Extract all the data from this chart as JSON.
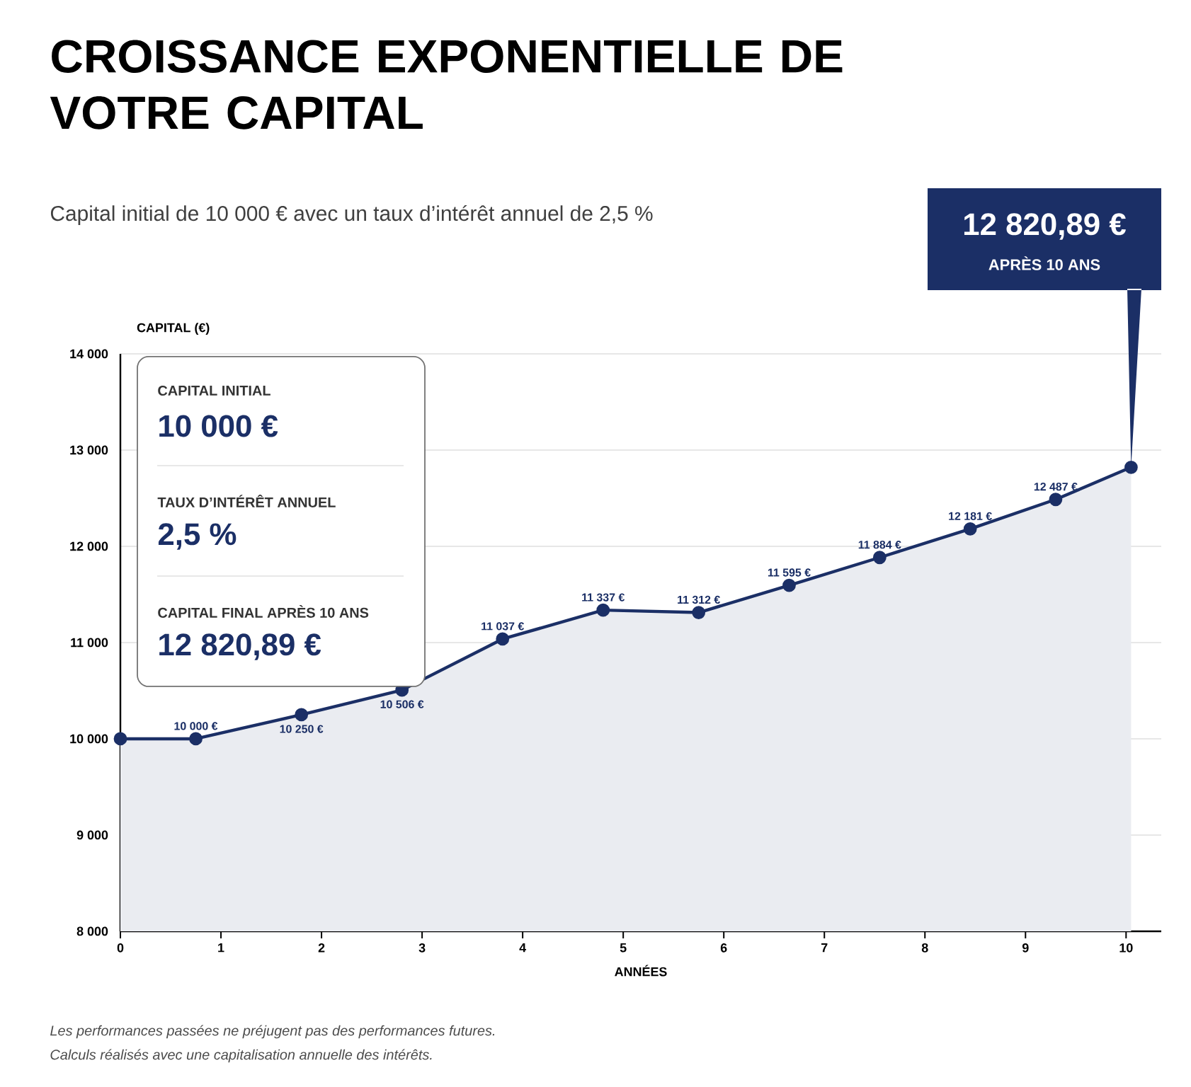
{
  "chart_data": {
    "type": "area",
    "title": "CROISSANCE EXPONENTIELLE DE VOTRE CAPITAL",
    "subtitle": "Capital initial de 10 000 € avec un taux d’intérêt annuel de 2,5 %",
    "xlabel": "ANNÉES",
    "ylabel": "CAPITAL (€)",
    "x": [
      0,
      0.75,
      1.8,
      2.8,
      3.8,
      4.8,
      5.75,
      6.65,
      7.55,
      8.45,
      9.3,
      10.05
    ],
    "values": [
      10000,
      10000,
      10250,
      10506,
      11037,
      11337,
      11312,
      11595,
      11884,
      12181,
      12487,
      12820.89
    ],
    "value_labels": [
      null,
      "10 000 €",
      "10 250 €",
      "10 506 €",
      "11 037 €",
      "11 337 €",
      "11 312 €",
      "11 595 €",
      "11 884 €",
      "12 181 €",
      "12 487 €",
      null
    ],
    "color": "#1b2f66",
    "marker": "circle",
    "grid": "y",
    "xlim": [
      0,
      10.35
    ],
    "xticks": [
      0,
      1,
      2,
      3,
      4,
      5,
      6,
      7,
      8,
      9,
      10
    ],
    "ylim": [
      8000,
      14000
    ],
    "yticks": [
      {
        "value": 8000,
        "label": "8 000"
      },
      {
        "value": 9000,
        "label": "9 000"
      },
      {
        "value": 10000,
        "label": "10 000"
      },
      {
        "value": 11000,
        "label": "11 000"
      },
      {
        "value": 12000,
        "label": "12 000"
      },
      {
        "value": 13000,
        "label": "13 000"
      },
      {
        "value": 14000,
        "label": "14 000"
      }
    ],
    "annotations": [
      "CAPITAL INITIAL",
      "10 000 €",
      "TAUX D’INTÉRÊT ANNUEL",
      "2,5 %",
      "CAPITAL FINAL APRÈS 10 ANS",
      "12 820,89 €",
      "12 820,89 €",
      "APRÈS 10 ANS",
      "Les performances passées ne préjugent pas des performances futures.",
      "Calculs réalisés avec une capitalisation annuelle des intérêts."
    ]
  }
}
